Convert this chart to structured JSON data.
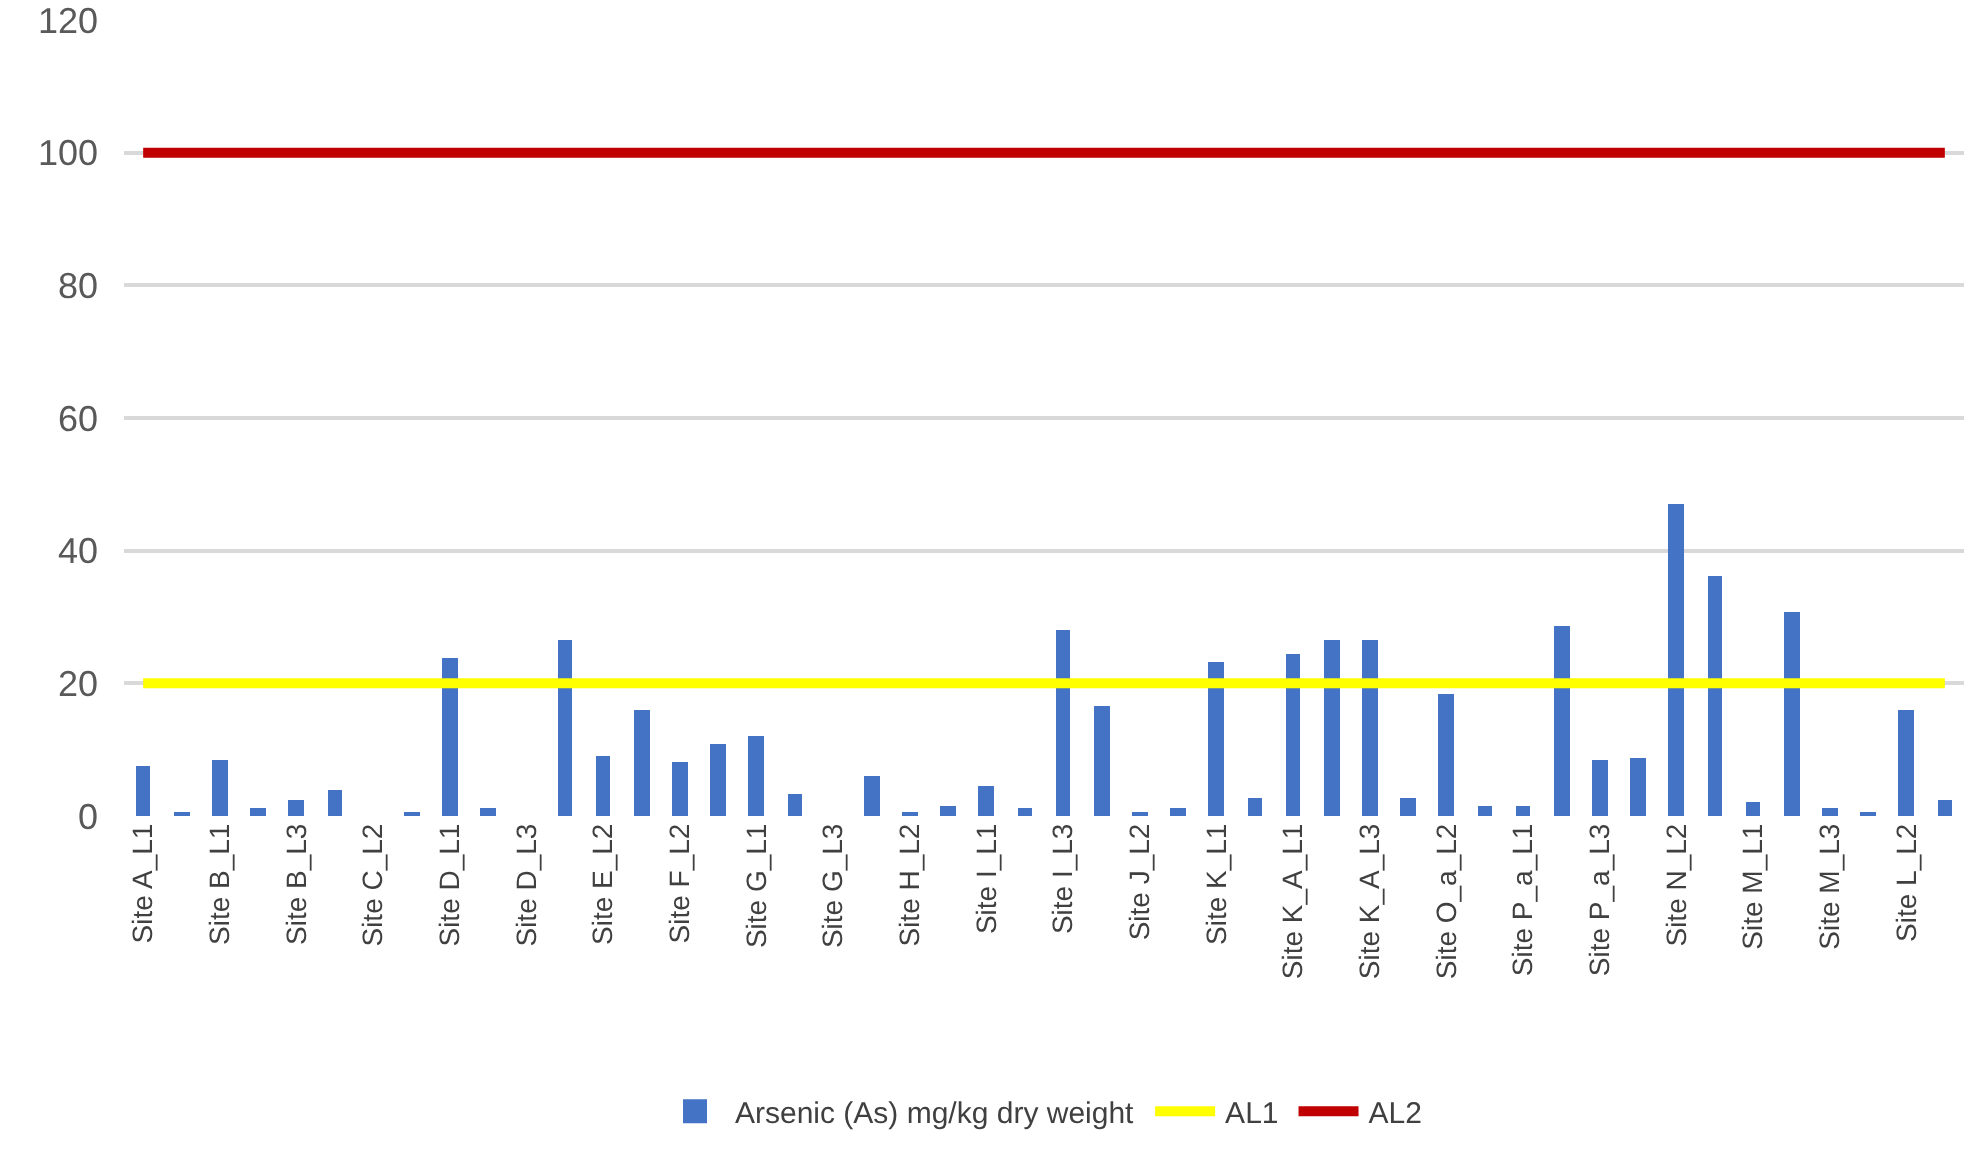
{
  "chart_data": {
    "type": "bar",
    "categories": [
      "Site A_L1",
      null,
      "Site B_L1",
      null,
      "Site B_L3",
      null,
      "Site C_L2",
      null,
      "Site D_L1",
      null,
      "Site D_L3",
      null,
      "Site E_L2",
      null,
      "Site F_L2",
      null,
      "Site G_L1",
      null,
      "Site G_L3",
      null,
      "Site H_L2",
      null,
      "Site I_L1",
      null,
      "Site I_L3",
      null,
      "Site J_L2",
      null,
      "Site K_L1",
      null,
      "Site K_A_L1",
      null,
      "Site K_A_L3",
      null,
      "Site O_a_L2",
      null,
      "Site P_a_L1",
      null,
      "Site P_a_L3",
      null,
      "Site N_L2",
      null,
      "Site M_L1",
      null,
      "Site M_L3",
      null,
      "Site L_L2",
      null
    ],
    "series": [
      {
        "name": "Arsenic (As) mg/kg dry weight",
        "color": "#4472c4",
        "values": [
          7.5,
          0.7,
          8.4,
          1.2,
          2.5,
          3.8,
          0,
          0.7,
          23.7,
          1.2,
          0,
          26.4,
          8.9,
          16.0,
          8.0,
          11.0,
          12.0,
          3.4,
          0,
          6.1,
          0.7,
          1.6,
          4.4,
          1.2,
          28.1,
          16.5,
          0.7,
          1.2,
          23.2,
          2.8,
          24.5,
          26.4,
          26.4,
          2.8,
          18.3,
          1.6,
          1.6,
          28.6,
          8.3,
          8.7,
          47.1,
          36.3,
          2.0,
          30.9,
          1.2,
          0.7,
          16.0,
          2.4
        ]
      }
    ],
    "ref_lines": [
      {
        "axis": "y",
        "value": 20,
        "label": "AL1",
        "color": "#ffff00"
      },
      {
        "axis": "y",
        "value": 100,
        "label": "AL2",
        "color": "#c00000"
      }
    ],
    "ylim": [
      0,
      120
    ],
    "yticks": [
      0,
      20,
      40,
      60,
      80,
      100,
      120
    ],
    "grid": "y",
    "legend": "bottom"
  }
}
